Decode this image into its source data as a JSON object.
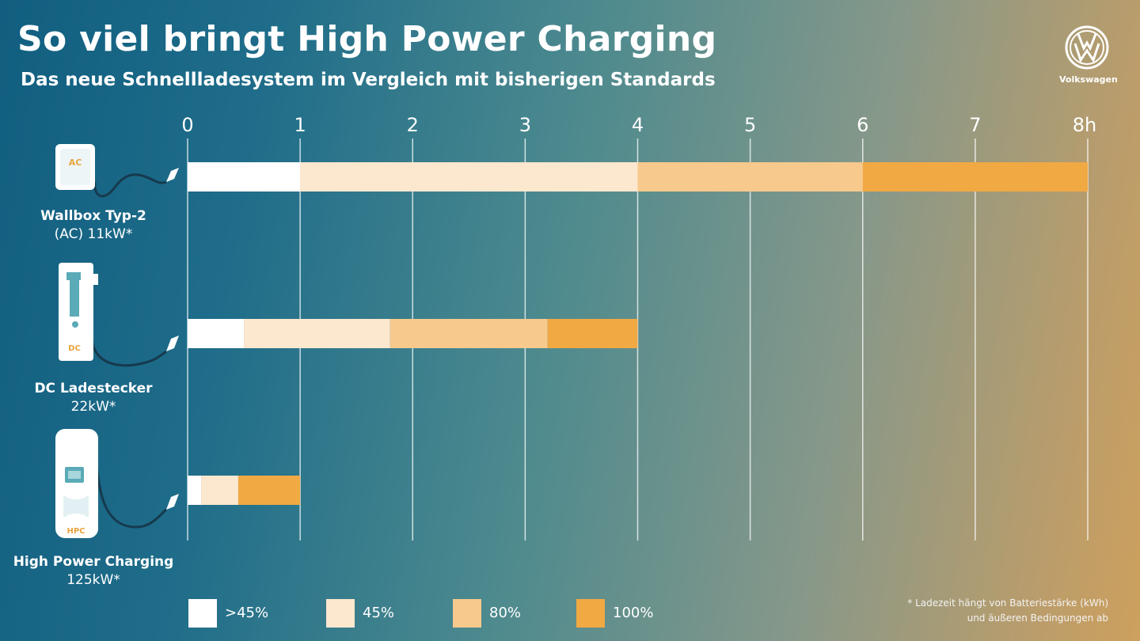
{
  "header": {
    "title": "So viel bringt High Power Charging",
    "subtitle": "Das neue Schnellladesystem im Vergleich mit bisherigen Standards"
  },
  "brand": {
    "name": "Volkswagen",
    "logo_icon": "vw-logo-icon"
  },
  "footnote": {
    "line1": "* Ladezeit hängt von Batteriestärke (kWh)",
    "line2": "und äußeren Bedingungen ab"
  },
  "devices": [
    {
      "icon": "ac-wallbox-icon",
      "badge": "AC"
    },
    {
      "icon": "dc-charger-icon",
      "badge": "DC"
    },
    {
      "icon": "hpc-charger-icon",
      "badge": "HPC"
    }
  ],
  "colors": {
    "gt45": "#ffffff",
    "c45": "#fce7cf",
    "c80": "#f7c98c",
    "c100": "#f1a944",
    "badge": "#e8a43c",
    "device_accent": "#5aaab8",
    "cable": "#163a4e"
  },
  "chart_data": {
    "type": "bar",
    "orientation": "horizontal",
    "stacked": true,
    "title": "So viel bringt High Power Charging",
    "subtitle": "Das neue Schnellladesystem im Vergleich mit bisherigen Standards",
    "xlim": [
      0,
      8
    ],
    "x_unit": "h",
    "x_ticks": [
      "0",
      "1",
      "2",
      "3",
      "4",
      "5",
      "6",
      "7",
      "8h"
    ],
    "grid": true,
    "legend_position": "bottom",
    "categories": [
      {
        "name": "Wallbox Typ-2",
        "power": "(AC) 11kW*"
      },
      {
        "name": "DC Ladestecker",
        "power": "22kW*"
      },
      {
        "name": "High Power Charging",
        "power": "125kW*"
      }
    ],
    "series": [
      {
        "name": ">45%",
        "color": "#ffffff",
        "values": [
          1.0,
          0.5,
          0.12
        ]
      },
      {
        "name": "45%",
        "color": "#fce7cf",
        "values": [
          3.0,
          1.3,
          0.33
        ]
      },
      {
        "name": "80%",
        "color": "#f7c98c",
        "values": [
          2.0,
          1.4,
          0.0
        ]
      },
      {
        "name": "100%",
        "color": "#f1a944",
        "values": [
          2.0,
          0.8,
          0.55
        ]
      }
    ]
  }
}
